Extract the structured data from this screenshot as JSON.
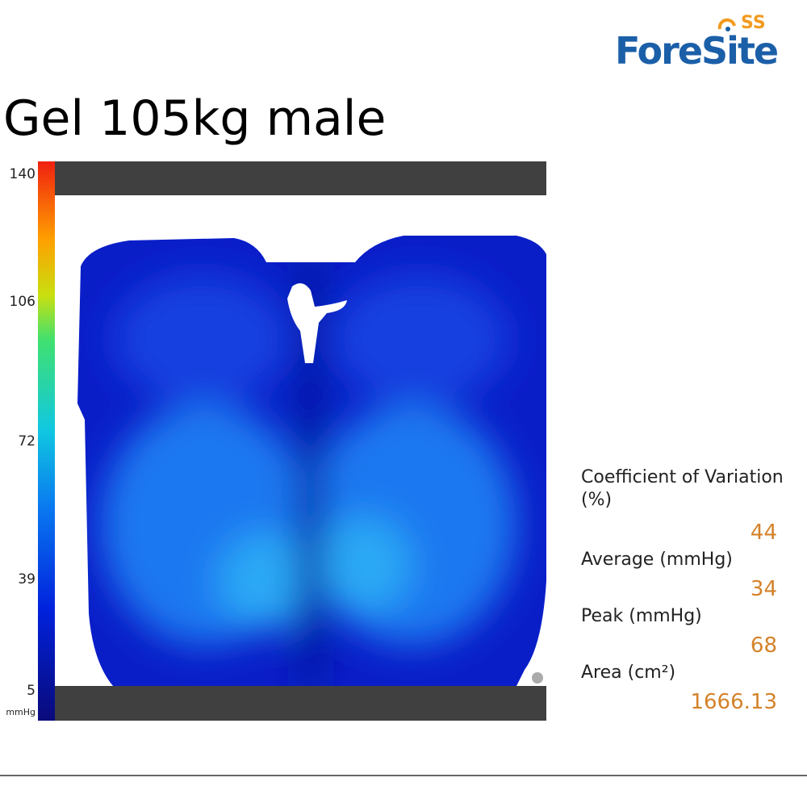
{
  "logo": {
    "mark": "SS",
    "name": "ForeSite"
  },
  "title": "Gel 105kg male",
  "scale": {
    "ticks": [
      "140",
      "106",
      "72",
      "39",
      "5"
    ],
    "unit": "mmHg"
  },
  "stats": [
    {
      "label": "Coefficient of Variation (%)",
      "value": "44"
    },
    {
      "label": "Average (mmHg)",
      "value": "34"
    },
    {
      "label": "Peak (mmHg)",
      "value": "68"
    },
    {
      "label": "Area (cm²)",
      "value": "1666.13"
    }
  ]
}
